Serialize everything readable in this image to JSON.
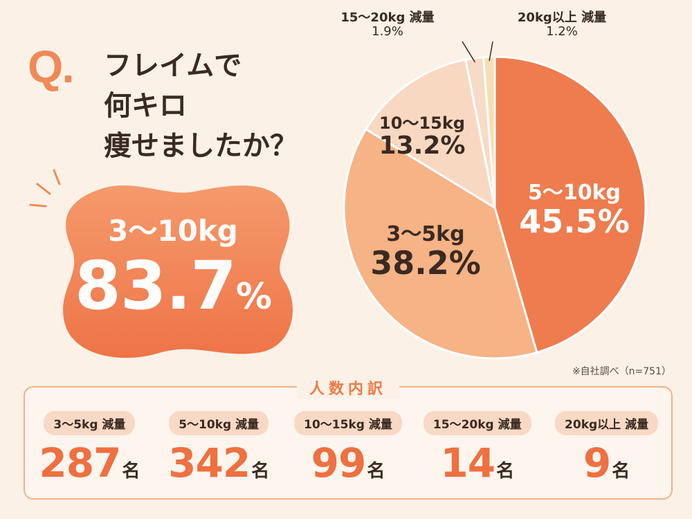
{
  "question": {
    "mark": "Q",
    "dot": ".",
    "text": "フレイムで\n何キロ\n痩せましたか？"
  },
  "highlight": {
    "range": "3～10kg",
    "percent": "83.7",
    "unit": "%"
  },
  "chart_data": {
    "type": "pie",
    "slices": [
      {
        "label": "5～10kg",
        "value": 45.5,
        "display": "45.5%",
        "color": "#ee7c4e"
      },
      {
        "label": "3～5kg",
        "value": 38.2,
        "display": "38.2%",
        "color": "#f6b385"
      },
      {
        "label": "10～15kg",
        "value": 13.2,
        "display": "13.2%",
        "color": "#f9d8c2"
      },
      {
        "label": "15～20kg 減量",
        "value": 1.9,
        "display": "1.9%",
        "color": "#f7dbc6"
      },
      {
        "label": "20kg以上 減量",
        "value": 1.2,
        "display": "1.2%",
        "color": "#f3dfb3"
      }
    ]
  },
  "source": "※自社調べ（n=751）",
  "breakdown": {
    "title": "人数内訳",
    "items": [
      {
        "label": "3～5kg 減量",
        "count": "287",
        "unit": "名"
      },
      {
        "label": "5～10kg 減量",
        "count": "342",
        "unit": "名"
      },
      {
        "label": "10～15kg 減量",
        "count": "99",
        "unit": "名"
      },
      {
        "label": "15～20kg 減量",
        "count": "14",
        "unit": "名"
      },
      {
        "label": "20kg以上 減量",
        "count": "9",
        "unit": "名"
      }
    ]
  },
  "colors": {
    "accent": "#ef7a45",
    "background": "#fbf1e7",
    "text": "#3a2a22"
  }
}
